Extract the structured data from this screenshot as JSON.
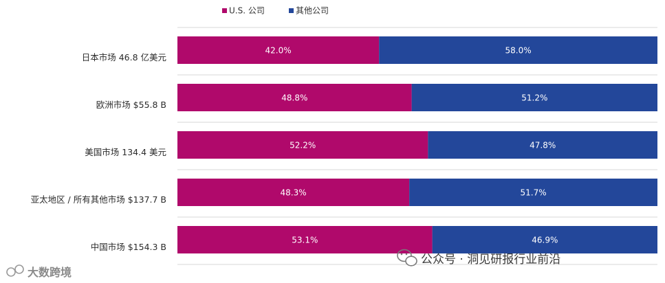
{
  "chart_data": {
    "type": "bar",
    "orientation": "horizontal",
    "stacked": true,
    "percent": true,
    "categories": [
      "日本市场 46.8 亿美元",
      "欧洲市场 $55.8 B",
      "美国市场 134.4 美元",
      "亚太地区 / 所有其他市场 $137.7 B",
      "中国市场 $154.3 B"
    ],
    "series": [
      {
        "name": "U.S. 公司",
        "color": "#b0096b",
        "values": [
          42.0,
          48.8,
          52.2,
          48.3,
          53.1
        ],
        "labels": [
          "42.0%",
          "48.8%",
          "52.2%",
          "48.3%",
          "53.1%"
        ]
      },
      {
        "name": "其他公司",
        "color": "#23479a",
        "values": [
          58.0,
          51.2,
          47.8,
          51.7,
          46.9
        ],
        "labels": [
          "58.0%",
          "51.2%",
          "47.8%",
          "51.7%",
          "46.9%"
        ]
      }
    ],
    "xlim": [
      0,
      100
    ],
    "legend": "top",
    "grid": true
  },
  "watermarks": {
    "wechat": "公众号 · 洞见研报行业前沿",
    "corner": "大数跨境"
  },
  "colors": {
    "grid": "#d7d7d7",
    "background": "#ffffff"
  }
}
